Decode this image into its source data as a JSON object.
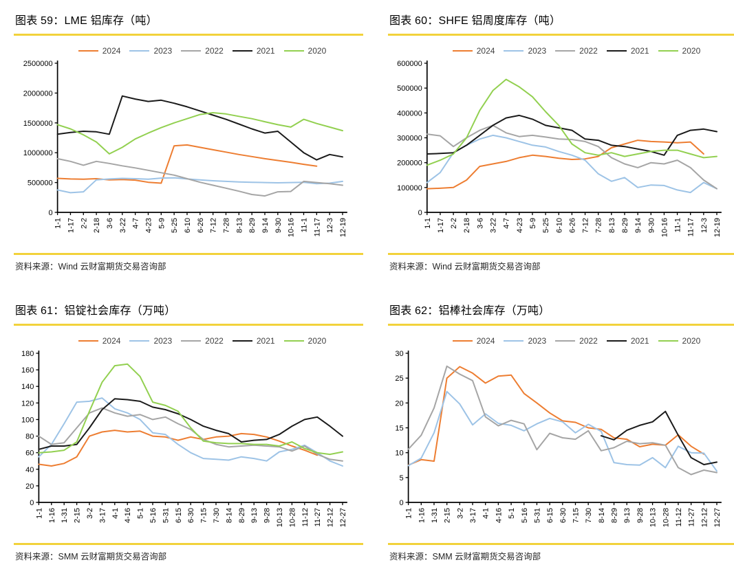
{
  "styles": {
    "rule_color": "#F2D23B",
    "axis_color": "#000000",
    "series_colors": {
      "y2024": "#ED7D31",
      "y2023": "#9DC3E6",
      "y2022": "#A5A5A5",
      "y2021": "#1A1A1A",
      "y2020": "#92D050"
    }
  },
  "charts": [
    {
      "title": "图表 59：LME 铝库存（吨）",
      "source": "资料来源：Wind 云财富期货交易咨询部",
      "chart_data": {
        "type": "line",
        "title": "LME 铝库存（吨）",
        "x_labels": [
          "1-1",
          "1-17",
          "2-2",
          "2-18",
          "3-6",
          "3-22",
          "4-7",
          "4-23",
          "5-9",
          "5-25",
          "6-10",
          "6-26",
          "7-12",
          "7-28",
          "8-13",
          "8-29",
          "9-14",
          "9-30",
          "10-16",
          "11-1",
          "11-17",
          "12-3",
          "12-19"
        ],
        "ylim": [
          0,
          2500000
        ],
        "ytick_step": 500000,
        "grid": false,
        "legend_position": "top",
        "series": [
          {
            "name": "2024",
            "color": "#ED7D31",
            "values": [
              570000,
              560000,
              555000,
              565000,
              545000,
              550000,
              540000,
              505000,
              490000,
              1115000,
              1130000,
              1090000,
              1050000,
              1010000,
              970000,
              935000,
              900000,
              870000,
              840000,
              805000,
              775000,
              null,
              null
            ]
          },
          {
            "name": "2023",
            "color": "#9DC3E6",
            "values": [
              375000,
              330000,
              345000,
              545000,
              560000,
              570000,
              565000,
              555000,
              575000,
              580000,
              560000,
              545000,
              530000,
              520000,
              510000,
              505000,
              500000,
              495000,
              500000,
              505000,
              480000,
              490000,
              520000
            ]
          },
          {
            "name": "2022",
            "color": "#A5A5A5",
            "values": [
              900000,
              855000,
              790000,
              855000,
              820000,
              780000,
              745000,
              705000,
              665000,
              625000,
              565000,
              505000,
              455000,
              405000,
              355000,
              300000,
              275000,
              345000,
              350000,
              520000,
              500000,
              480000,
              455000
            ]
          },
          {
            "name": "2021",
            "color": "#1A1A1A",
            "values": [
              1310000,
              1340000,
              1360000,
              1350000,
              1310000,
              1950000,
              1900000,
              1860000,
              1880000,
              1830000,
              1770000,
              1700000,
              1630000,
              1560000,
              1480000,
              1400000,
              1330000,
              1360000,
              1180000,
              1000000,
              880000,
              970000,
              930000
            ]
          },
          {
            "name": "2020",
            "color": "#92D050",
            "values": [
              1470000,
              1400000,
              1300000,
              1180000,
              980000,
              1090000,
              1230000,
              1330000,
              1420000,
              1500000,
              1570000,
              1640000,
              1670000,
              1650000,
              1610000,
              1570000,
              1520000,
              1470000,
              1430000,
              1560000,
              1490000,
              1430000,
              1370000
            ]
          }
        ]
      }
    },
    {
      "title": "图表 60：SHFE 铝周度库存（吨）",
      "source": "资料来源：Wind 云财富期货交易咨询部",
      "chart_data": {
        "type": "line",
        "title": "SHFE 铝周度库存（吨）",
        "x_labels": [
          "1-1",
          "1-17",
          "2-2",
          "2-18",
          "3-6",
          "3-22",
          "4-7",
          "4-23",
          "5-9",
          "5-25",
          "6-10",
          "6-26",
          "7-12",
          "7-28",
          "8-13",
          "8-29",
          "9-14",
          "9-30",
          "10-16",
          "11-1",
          "11-17",
          "12-3",
          "12-19"
        ],
        "ylim": [
          0,
          600000
        ],
        "ytick_step": 100000,
        "grid": false,
        "legend_position": "top",
        "series": [
          {
            "name": "2024",
            "color": "#ED7D31",
            "values": [
              95000,
              97000,
              100000,
              130000,
              185000,
              195000,
              205000,
              220000,
              230000,
              225000,
              218000,
              213000,
              215000,
              225000,
              260000,
              275000,
              290000,
              285000,
              283000,
              280000,
              283000,
              235000,
              null
            ]
          },
          {
            "name": "2023",
            "color": "#9DC3E6",
            "values": [
              120000,
              160000,
              240000,
              270000,
              295000,
              310000,
              300000,
              285000,
              270000,
              263000,
              245000,
              230000,
              210000,
              155000,
              125000,
              140000,
              100000,
              110000,
              108000,
              90000,
              80000,
              120000,
              95000
            ]
          },
          {
            "name": "2022",
            "color": "#A5A5A5",
            "values": [
              315000,
              308000,
              265000,
              300000,
              330000,
              350000,
              320000,
              305000,
              310000,
              303000,
              295000,
              293000,
              285000,
              265000,
              220000,
              195000,
              180000,
              200000,
              195000,
              210000,
              180000,
              130000,
              95000
            ]
          },
          {
            "name": "2021",
            "color": "#1A1A1A",
            "values": [
              235000,
              237000,
              240000,
              270000,
              310000,
              350000,
              380000,
              390000,
              375000,
              350000,
              340000,
              330000,
              295000,
              290000,
              270000,
              265000,
              255000,
              245000,
              230000,
              310000,
              330000,
              335000,
              325000
            ]
          },
          {
            "name": "2020",
            "color": "#92D050",
            "values": [
              190000,
              210000,
              235000,
              300000,
              410000,
              490000,
              535000,
              505000,
              465000,
              405000,
              350000,
              275000,
              240000,
              230000,
              240000,
              225000,
              235000,
              245000,
              250000,
              250000,
              235000,
              220000,
              225000
            ]
          }
        ]
      }
    },
    {
      "title": "图表 61：铝锭社会库存（万吨）",
      "source": "资料来源：SMM 云财富期货交易咨询部",
      "chart_data": {
        "type": "line",
        "title": "铝锭社会库存（万吨）",
        "x_labels": [
          "1-1",
          "1-16",
          "1-31",
          "2-15",
          "3-2",
          "3-17",
          "4-1",
          "4-16",
          "5-1",
          "5-16",
          "5-31",
          "6-15",
          "6-30",
          "7-15",
          "7-30",
          "8-14",
          "8-29",
          "9-13",
          "9-28",
          "10-13",
          "10-28",
          "11-12",
          "11-27",
          "12-12",
          "12-27"
        ],
        "ylim": [
          0,
          180
        ],
        "ytick_step": 20,
        "grid": false,
        "legend_position": "top",
        "series": [
          {
            "name": "2024",
            "color": "#ED7D31",
            "values": [
              46,
              44,
              47,
              55,
              80,
              85,
              87,
              85,
              86,
              80,
              79,
              75,
              79,
              76,
              79,
              80,
              83,
              82,
              79,
              74,
              68,
              63,
              57,
              null,
              null
            ]
          },
          {
            "name": "2023",
            "color": "#9DC3E6",
            "values": [
              55,
              70,
              95,
              121,
              122,
              126,
              113,
              108,
              100,
              84,
              82,
              70,
              60,
              53,
              52,
              51,
              55,
              53,
              50,
              61,
              64,
              69,
              60,
              50,
              44
            ]
          },
          {
            "name": "2022",
            "color": "#A5A5A5",
            "values": [
              80,
              70,
              72,
              90,
              108,
              114,
              108,
              104,
              106,
              100,
              103,
              95,
              88,
              76,
              70,
              67,
              68,
              69,
              68,
              67,
              62,
              68,
              58,
              52,
              50
            ]
          },
          {
            "name": "2021",
            "color": "#1A1A1A",
            "values": [
              64,
              68,
              68,
              70,
              90,
              112,
              125,
              124,
              122,
              115,
              112,
              107,
              100,
              92,
              87,
              83,
              73,
              75,
              76,
              82,
              92,
              100,
              103,
              92,
              80
            ]
          },
          {
            "name": "2020",
            "color": "#92D050",
            "values": [
              60,
              61,
              63,
              73,
              110,
              145,
              165,
              167,
              152,
              121,
              117,
              110,
              90,
              74,
              72,
              71,
              71,
              70,
              70,
              68,
              73,
              65,
              60,
              58,
              61
            ]
          }
        ]
      }
    },
    {
      "title": "图表 62：铝棒社会库存（万吨）",
      "source": "资料来源：SMM 云财富期货交易咨询部",
      "chart_data": {
        "type": "line",
        "title": "铝棒社会库存（万吨）",
        "x_labels": [
          "1-1",
          "1-16",
          "1-31",
          "2-15",
          "3-2",
          "3-17",
          "4-1",
          "4-16",
          "5-1",
          "5-16",
          "5-31",
          "6-15",
          "6-30",
          "7-15",
          "7-30",
          "8-14",
          "8-29",
          "9-13",
          "9-28",
          "10-13",
          "10-28",
          "11-12",
          "11-27",
          "12-12",
          "12-27"
        ],
        "ylim": [
          0,
          30
        ],
        "ytick_step": 5,
        "grid": false,
        "legend_position": "top",
        "series": [
          {
            "name": "2024",
            "color": "#ED7D31",
            "values": [
              7.5,
              8.6,
              8.3,
              25.0,
              27.3,
              26.0,
              24.0,
              25.4,
              25.6,
              21.9,
              20.0,
              18.0,
              16.4,
              16.1,
              15.0,
              14.7,
              13.0,
              12.7,
              11.2,
              11.7,
              11.5,
              13.6,
              11.3,
              9.7,
              null
            ]
          },
          {
            "name": "2023",
            "color": "#9DC3E6",
            "values": [
              7.4,
              8.9,
              14.0,
              22.3,
              19.8,
              15.6,
              17.8,
              15.9,
              15.5,
              14.4,
              15.8,
              16.9,
              16.2,
              14.0,
              15.7,
              14.3,
              8.0,
              7.6,
              7.5,
              9.0,
              7.0,
              11.3,
              10.0,
              9.9,
              6.3
            ]
          },
          {
            "name": "2022",
            "color": "#A5A5A5",
            "values": [
              10.7,
              13.5,
              19.0,
              27.4,
              25.8,
              24.5,
              17.2,
              15.4,
              16.5,
              15.8,
              10.6,
              13.9,
              13.0,
              12.7,
              14.4,
              10.4,
              11.0,
              12.3,
              11.8,
              12.0,
              11.5,
              7.0,
              5.6,
              6.5,
              6.0
            ]
          },
          {
            "name": "2021",
            "color": "#1A1A1A",
            "values": [
              null,
              null,
              null,
              null,
              null,
              null,
              null,
              null,
              null,
              null,
              null,
              null,
              null,
              null,
              null,
              13.4,
              12.6,
              14.5,
              15.5,
              16.2,
              18.3,
              13.5,
              9.0,
              7.6,
              8.1
            ]
          },
          {
            "name": "2020",
            "color": "#92D050",
            "values": [
              null,
              null,
              null,
              null,
              null,
              null,
              null,
              null,
              null,
              null,
              null,
              null,
              null,
              null,
              null,
              null,
              null,
              null,
              null,
              null,
              null,
              null,
              null,
              null,
              null
            ]
          }
        ]
      }
    }
  ]
}
